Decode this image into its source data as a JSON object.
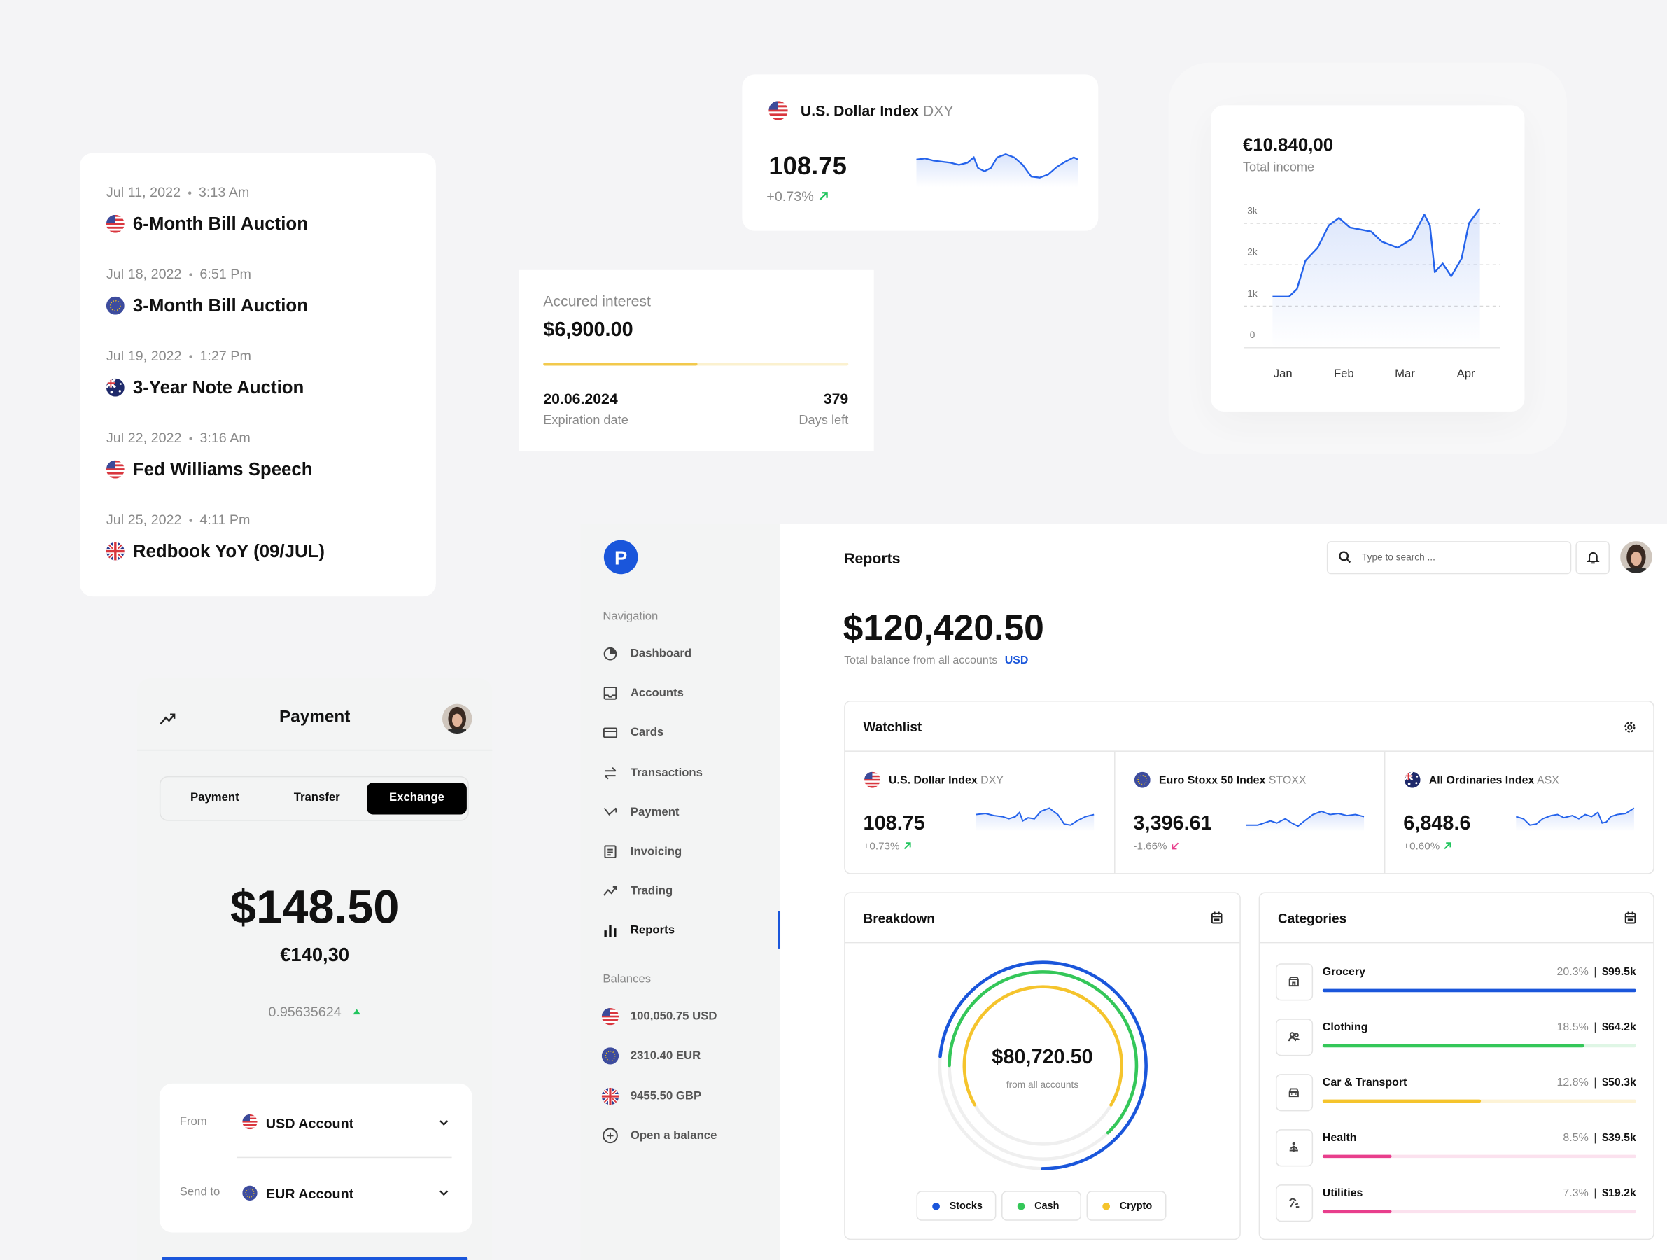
{
  "events": [
    {
      "date": "Jul 11, 2022",
      "time": "3:13 Am",
      "title": "6-Month Bill Auction"
    },
    {
      "date": "Jul 18, 2022",
      "time": "6:51 Pm",
      "title": "3-Month Bill Auction"
    },
    {
      "date": "Jul 19, 2022",
      "time": "1:27 Pm",
      "title": "3-Year Note Auction"
    },
    {
      "date": "Jul 22, 2022",
      "time": "3:16 Am",
      "title": "Fed Williams Speech"
    },
    {
      "date": "Jul 25, 2022",
      "time": "4:11 Pm",
      "title": "Redbook YoY (09/JUL)"
    }
  ],
  "index_card": {
    "name": "U.S. Dollar Index",
    "ticker": "DXY",
    "value": "108.75",
    "change": "+0.73%"
  },
  "interest_card": {
    "label": "Accured interest",
    "amount": "$6,900.00",
    "date": "20.06.2024",
    "date_label": "Expiration date",
    "days": "379",
    "days_label": "Days left"
  },
  "income_card": {
    "amount": "€10.840,00",
    "label": "Total income",
    "chart_data": {
      "type": "area",
      "color": "#2563eb",
      "x": [
        -0.17,
        0.1,
        0.23,
        0.37,
        0.57,
        0.75,
        0.92,
        1.1,
        1.45,
        1.62,
        1.88,
        2.11,
        2.32,
        2.41,
        2.49,
        2.62,
        2.76,
        2.93,
        3.05,
        3.23
      ],
      "values": [
        1230,
        1230,
        1410,
        2100,
        2410,
        2950,
        3130,
        2900,
        2800,
        2560,
        2410,
        2620,
        3210,
        2950,
        1820,
        2030,
        1720,
        2150,
        3000,
        3360
      ],
      "xlim": [
        -0.17,
        3.23
      ],
      "xticks": [
        {
          "value": 0,
          "label": "Jan"
        },
        {
          "value": 1,
          "label": "Feb"
        },
        {
          "value": 2,
          "label": "Mar"
        },
        {
          "value": 3,
          "label": "Apr"
        }
      ],
      "ylim": [
        0,
        3000
      ],
      "yticks": [
        0,
        {
          "value": 1000,
          "label": "1k"
        },
        {
          "value": 2000,
          "label": "2k"
        },
        {
          "value": 3000,
          "label": "3k"
        }
      ],
      "grid": true
    }
  },
  "payment": {
    "title": "Payment",
    "tabs": [
      "Payment",
      "Transfer",
      "Exchange"
    ],
    "amount": "$148.50",
    "converted": "€140,30",
    "rate": "0.95635624",
    "from_label": "From",
    "from_account": "USD Account",
    "to_label": "Send to",
    "to_account": "EUR Account"
  },
  "dashboard": {
    "logo": "P",
    "nav_title": "Navigation",
    "nav": [
      "Dashboard",
      "Accounts",
      "Cards",
      "Transactions",
      "Payment",
      "Invoicing",
      "Trading",
      "Reports"
    ],
    "balances_title": "Balances",
    "balances": [
      "100,050.75 USD",
      "2310.40 EUR",
      "9455.50 GBP",
      "Open a balance"
    ],
    "page_title": "Reports",
    "search_placeholder": "Type to search ...",
    "total": "$120,420.50",
    "total_label": "Total balance from all accounts",
    "currency": "USD",
    "watchlist": {
      "title": "Watchlist",
      "items": [
        {
          "name": "U.S. Dollar Index",
          "ticker": "DXY",
          "value": "108.75",
          "change": "+0.73%"
        },
        {
          "name": "Euro Stoxx 50 Index",
          "ticker": "STOXX",
          "value": "3,396.61",
          "change": "-1.66%"
        },
        {
          "name": "All Ordinaries Index",
          "ticker": "ASX",
          "value": "6,848.6",
          "change": "+0.60%"
        }
      ]
    },
    "breakdown": {
      "title": "Breakdown",
      "amount": "$80,720.50",
      "label": "from all accounts",
      "legend": [
        "Stocks",
        "Cash",
        "Crypto"
      ]
    },
    "categories": {
      "title": "Categories",
      "items": [
        {
          "name": "Grocery",
          "share": "20.3%",
          "amount": "$99.5k"
        },
        {
          "name": "Clothing",
          "share": "18.5%",
          "amount": "$64.2k"
        },
        {
          "name": "Car & Transport",
          "share": "12.8%",
          "amount": "$50.3k"
        },
        {
          "name": "Health",
          "share": "8.5%",
          "amount": "$39.5k"
        },
        {
          "name": "Utilities",
          "share": "7.3%",
          "amount": "$19.2k"
        }
      ]
    }
  }
}
